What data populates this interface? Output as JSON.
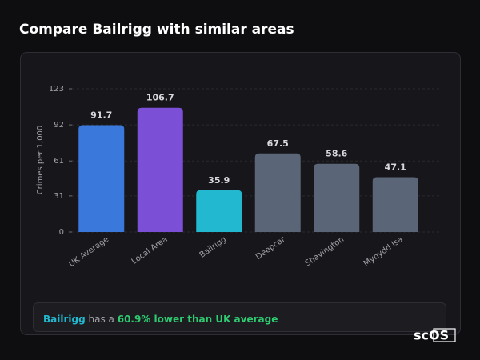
{
  "chart_data": {
    "type": "bar",
    "title": "Compare Bailrigg with similar areas",
    "y_label": "Crimes per 1,000",
    "categories": [
      "UK Average",
      "Local Area",
      "Bailrigg",
      "Deepcar",
      "Shavington",
      "Mynydd Isa"
    ],
    "values": [
      91.7,
      106.7,
      35.9,
      67.5,
      58.6,
      47.1
    ],
    "colors": [
      "#3b78dc",
      "#7b4fd6",
      "#22b8cf",
      "#5a6577",
      "#5a6577",
      "#5a6577"
    ],
    "ylim": [
      0,
      123
    ],
    "yticks": [
      0,
      31,
      61,
      92,
      123
    ],
    "grid": true,
    "note": {
      "area": "Bailrigg",
      "middle": "has a",
      "highlight": "60.9% lower than UK average"
    },
    "logo": "scOS"
  }
}
